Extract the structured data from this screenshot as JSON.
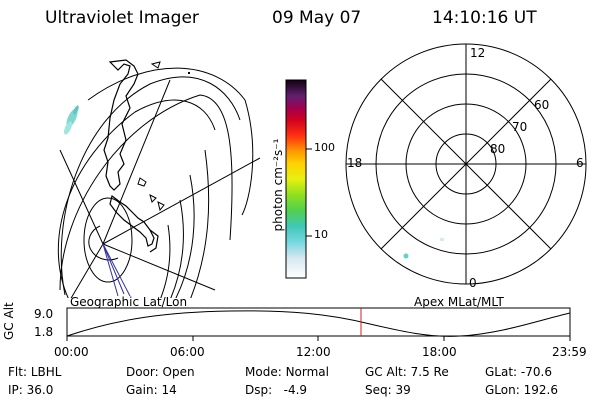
{
  "header": {
    "instrument": "Ultraviolet Imager",
    "date": "09 May 07",
    "time": "14:10:16 UT"
  },
  "geo_panel": {
    "title": "Geographic Lat/Lon"
  },
  "polar_panel": {
    "title": "Apex MLat/MLT",
    "mlt_labels": {
      "top": "12",
      "left": "18",
      "right": "6",
      "bottom": "0"
    },
    "lat_labels": [
      "60",
      "70",
      "80"
    ]
  },
  "colorbar": {
    "title": "photon cm⁻²s⁻¹",
    "ticks": [
      "100",
      "10"
    ]
  },
  "altitude_plot": {
    "ylabel": "GC Alt",
    "yticks": [
      "9.0",
      "1.8"
    ],
    "xticks": [
      "00:00",
      "06:00",
      "12:00",
      "18:00",
      "23:59"
    ],
    "current_time_marker": "14:10"
  },
  "status": {
    "row1": [
      {
        "key": "Flt:",
        "value": "LBHL"
      },
      {
        "key": "Door:",
        "value": "Open"
      },
      {
        "key": "Mode:",
        "value": "Normal"
      },
      {
        "key": "GC Alt:",
        "value": "7.5 Re"
      },
      {
        "key": "GLat:",
        "value": "-70.6"
      }
    ],
    "row2": [
      {
        "key": "IP:",
        "value": "36.0"
      },
      {
        "key": "Gain:",
        "value": "14"
      },
      {
        "key": "Dsp:",
        "value": "-4.9"
      },
      {
        "key": "Seq:",
        "value": "39"
      },
      {
        "key": "GLon:",
        "value": "192.6"
      }
    ]
  }
}
